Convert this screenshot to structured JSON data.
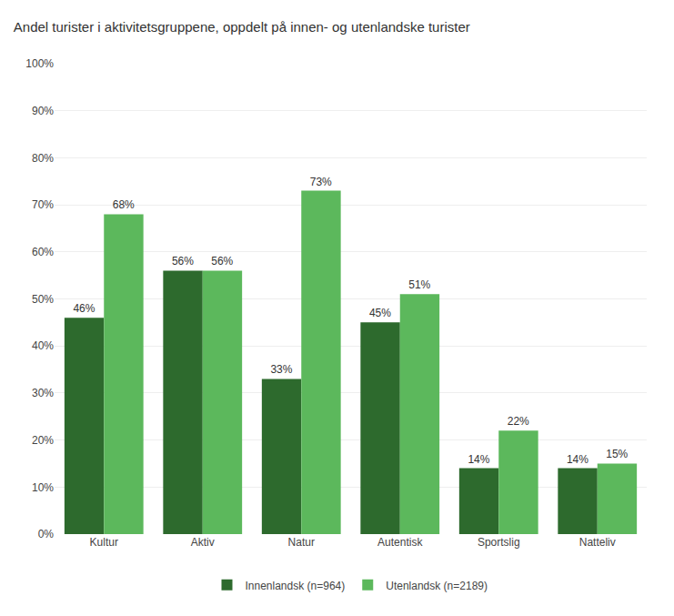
{
  "chart_data": {
    "type": "bar",
    "title": "Andel turister i aktivitetsgruppene, oppdelt på innen- og utenlandske turister",
    "categories": [
      "Kultur",
      "Aktiv",
      "Natur",
      "Autentisk",
      "Sportslig",
      "Natteliv"
    ],
    "series": [
      {
        "name": "Innenlandsk (n=964)",
        "color": "#2d6a2d",
        "values": [
          46,
          56,
          33,
          45,
          14,
          14
        ],
        "value_labels": [
          "46%",
          "56%",
          "33%",
          "45%",
          "14%",
          "14%"
        ]
      },
      {
        "name": "Utenlandsk (n=2189)",
        "color": "#5cb85c",
        "values": [
          68,
          56,
          73,
          51,
          22,
          15
        ],
        "value_labels": [
          "68%",
          "56%",
          "73%",
          "51%",
          "22%",
          "15%"
        ]
      }
    ],
    "ylim": [
      0,
      100
    ],
    "yticks": [
      {
        "value": 0,
        "label": "0%"
      },
      {
        "value": 10,
        "label": "10%"
      },
      {
        "value": 20,
        "label": "20%"
      },
      {
        "value": 30,
        "label": "30%"
      },
      {
        "value": 40,
        "label": "40%"
      },
      {
        "value": 50,
        "label": "50%"
      },
      {
        "value": 60,
        "label": "60%"
      },
      {
        "value": 70,
        "label": "70%"
      },
      {
        "value": 80,
        "label": "80%"
      },
      {
        "value": 90,
        "label": "90%"
      },
      {
        "value": 100,
        "label": "100%"
      }
    ],
    "grid": true,
    "legend": "bottom",
    "data_labels": true
  }
}
